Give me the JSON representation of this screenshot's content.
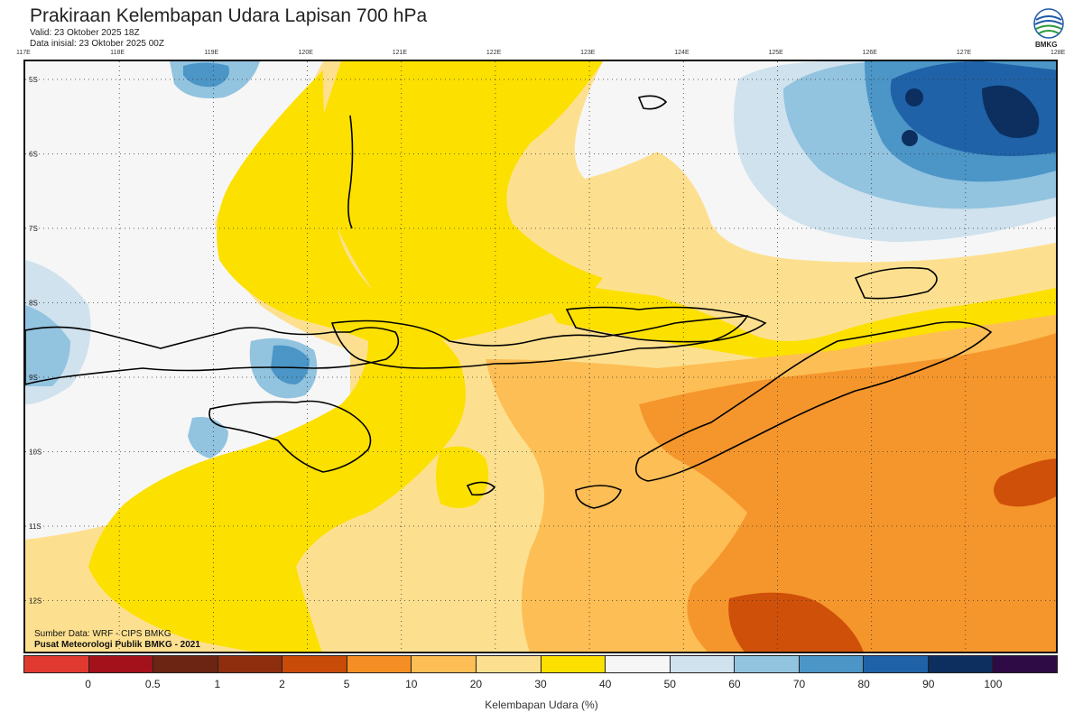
{
  "header": {
    "title": "Prakiraan Kelembapan Udara Lapisan 700 hPa",
    "valid": "Valid: 23 Oktober 2025 18Z",
    "init": "Data inisial: 23 Oktober 2025 00Z"
  },
  "logo": {
    "text": "BMKG",
    "icon": "bmkg-logo-icon"
  },
  "map": {
    "region": "Nusa Tenggara",
    "lon_labels": [
      "117E",
      "118E",
      "119E",
      "120E",
      "121E",
      "122E",
      "123E",
      "124E",
      "125E",
      "126E",
      "127E",
      "128E"
    ],
    "lat_labels": [
      "5S",
      "6S",
      "7S",
      "8S",
      "9S",
      "10S",
      "11S",
      "12S"
    ]
  },
  "credits": {
    "source": "Sumber Data: WRF - CIPS BMKG",
    "org": "Pusat Meteorologi Publik BMKG - 2021"
  },
  "colorbar": {
    "caption": "Kelembapan Udara (%)",
    "labels": [
      "0",
      "0.5",
      "1",
      "2",
      "5",
      "10",
      "20",
      "30",
      "40",
      "50",
      "60",
      "70",
      "80",
      "90",
      "100"
    ],
    "colors": [
      "#e03a30",
      "#a3121b",
      "#6b2512",
      "#8f2e0e",
      "#c84b08",
      "#f58f25",
      "#fdbe55",
      "#fde08f",
      "#fce000",
      "#f6f6f6",
      "#cfe2ee",
      "#92c3df",
      "#4b95c7",
      "#1f62a8",
      "#0c2f60",
      "#2e0b45"
    ]
  },
  "colors": {
    "white_band": "#f6f6f6",
    "yellow_band": "#fce000",
    "cream_band": "#fde08f",
    "orange_light": "#fdbe55",
    "orange": "#f5962c",
    "orange_dark": "#cf5009",
    "blue_light": "#cfe2ee",
    "blue_mid": "#92c3df",
    "blue": "#4b95c7",
    "blue_dark": "#1f62a8",
    "navy": "#0c2f60"
  }
}
